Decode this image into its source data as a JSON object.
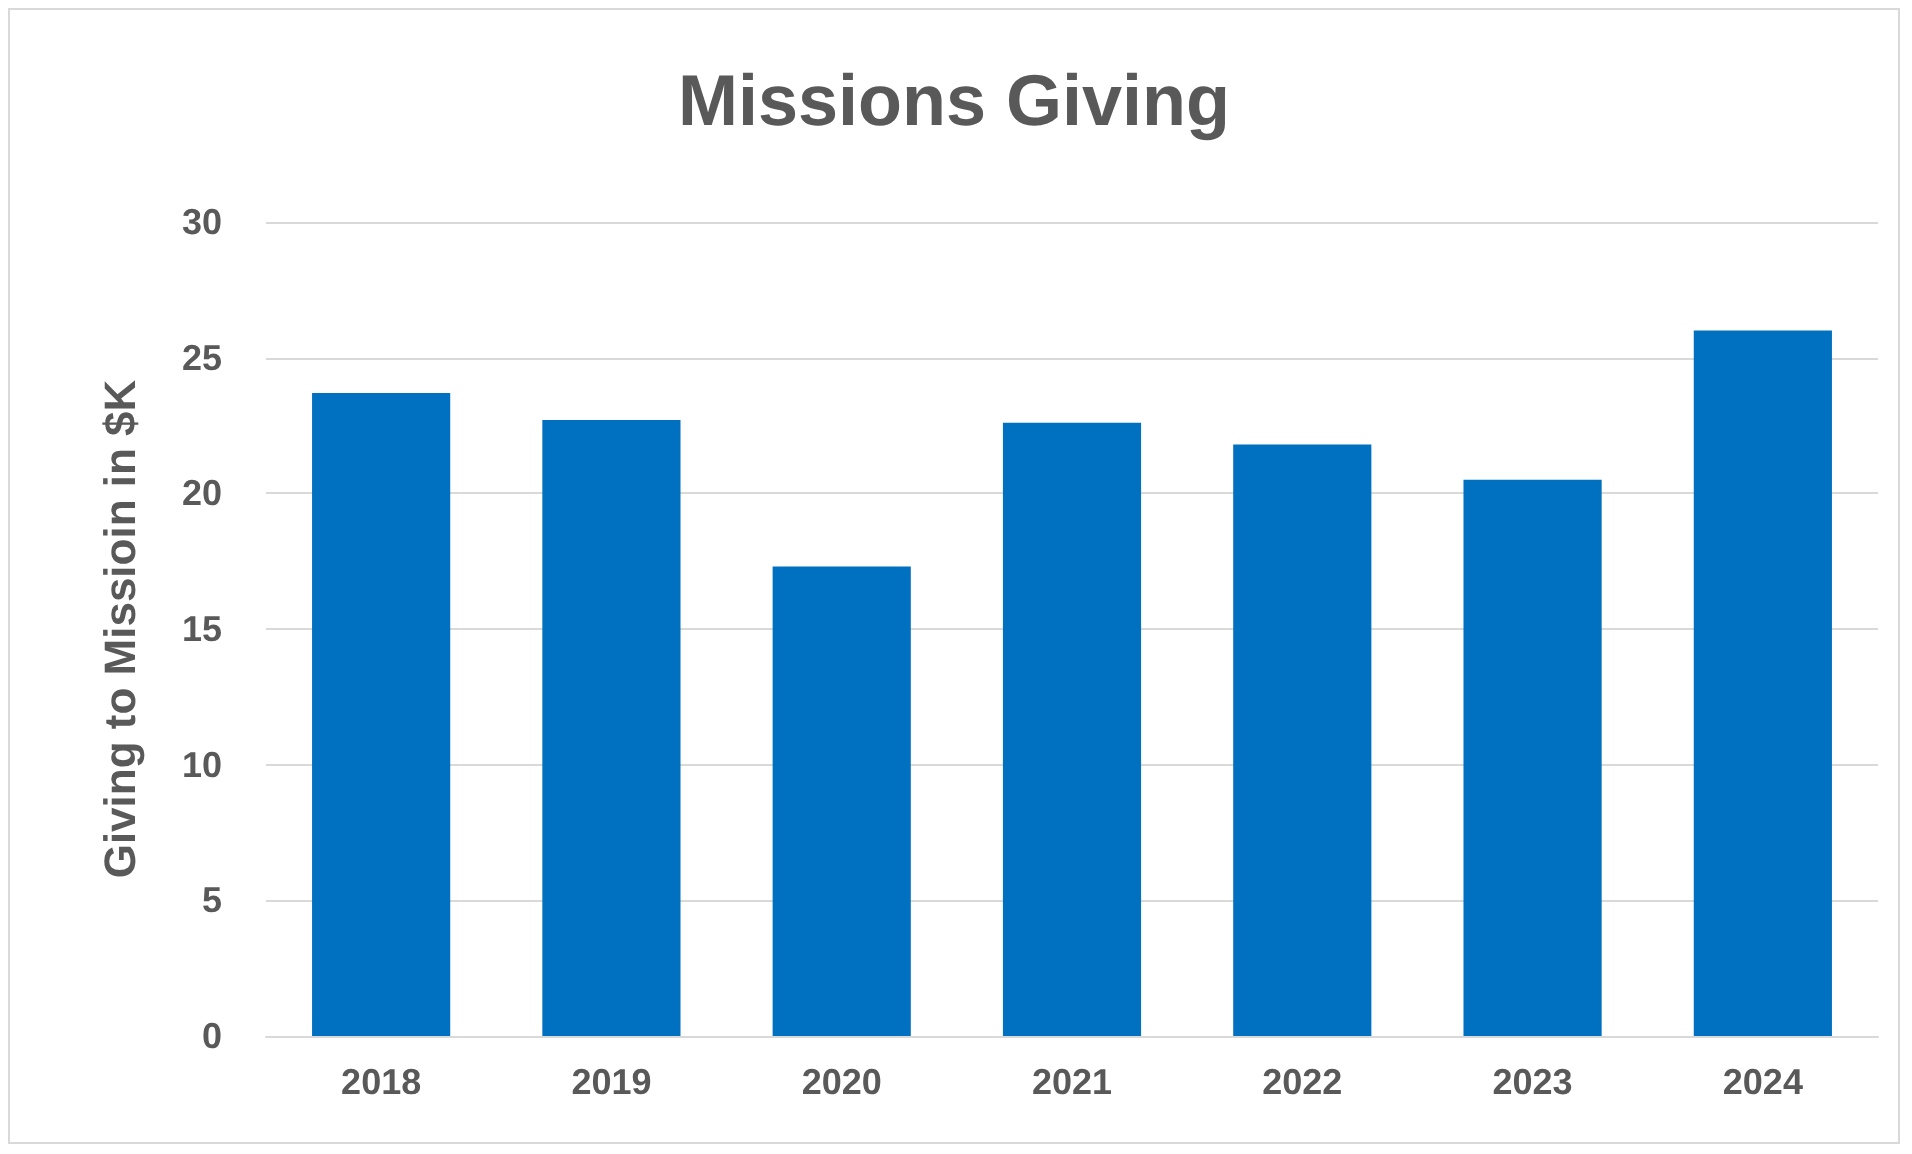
{
  "chart_data": {
    "type": "bar",
    "title": "Missions Giving",
    "ylabel": "Giving to Missioin in $K",
    "categories": [
      "2018",
      "2019",
      "2020",
      "2021",
      "2022",
      "2023",
      "2024"
    ],
    "values": [
      23.7,
      22.7,
      17.3,
      22.6,
      21.8,
      20.5,
      26.0
    ],
    "color": "#0070c0",
    "ylim": [
      0,
      30
    ],
    "yticks": [
      0,
      5,
      10,
      15,
      20,
      25,
      30
    ],
    "grid": "y"
  }
}
